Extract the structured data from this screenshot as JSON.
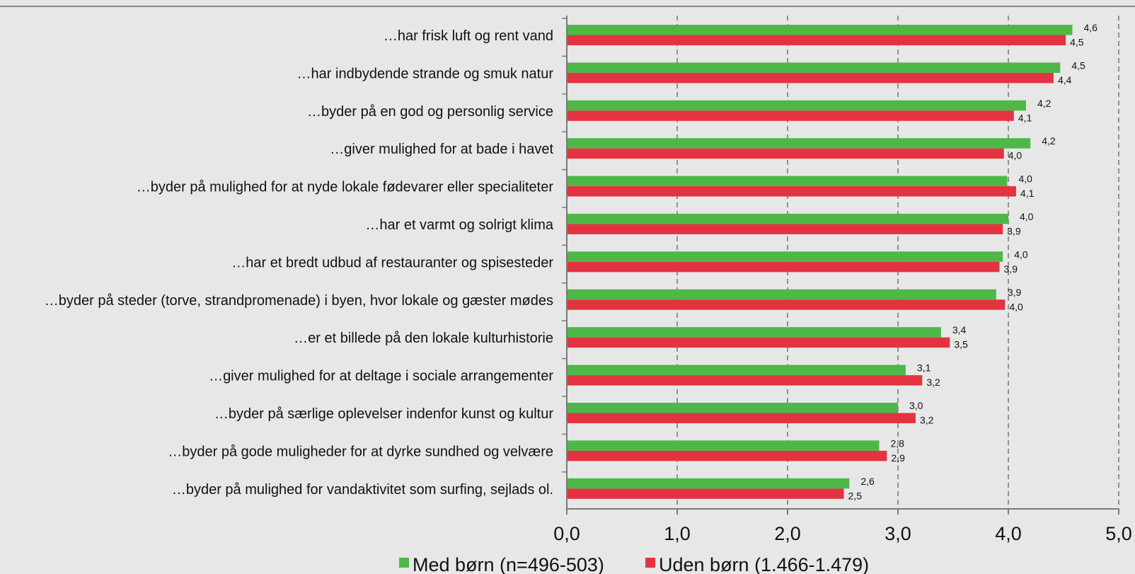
{
  "chart_data": {
    "type": "bar",
    "orientation": "horizontal",
    "categories": [
      "…har frisk luft og rent vand",
      "…har indbydende strande og smuk natur",
      "…byder på en god og personlig service",
      "…giver mulighed for at bade i havet",
      "…byder på mulighed for at nyde lokale fødevarer eller specialiteter",
      "…har et varmt og solrigt klima",
      "…har et bredt udbud af restauranter og spisesteder",
      "…byder på steder (torve, strandpromenade) i byen, hvor lokale og gæster mødes",
      "…er et billede på den lokale kulturhistorie",
      "…giver mulighed for at deltage i sociale arrangementer",
      "…byder på særlige oplevelser indenfor kunst og kultur",
      "…byder på gode muligheder for at dyrke sundhed og velvære",
      "…byder på mulighed for vandaktivitet som surfing, sejlads ol."
    ],
    "series": [
      {
        "name": "Med børn (n=496-503)",
        "color": "#4db848",
        "values": [
          4.58,
          4.47,
          4.16,
          4.2,
          3.99,
          4.0,
          3.95,
          3.89,
          3.39,
          3.07,
          3.0,
          2.83,
          2.56
        ],
        "labels": [
          "4,6",
          "4,5",
          "4,2",
          "4,2",
          "4,0",
          "4,0",
          "4,0",
          "3,9",
          "3,4",
          "3,1",
          "3,0",
          "2,8",
          "2,6"
        ]
      },
      {
        "name": "Uden børn (1.466-1.479)",
        "color": "#e43340",
        "values": [
          4.52,
          4.41,
          4.05,
          3.96,
          4.07,
          3.95,
          3.92,
          3.97,
          3.47,
          3.22,
          3.16,
          2.9,
          2.51
        ],
        "labels": [
          "4,5",
          "4,4",
          "4,1",
          "4,0",
          "4,1",
          "3,9",
          "3,9",
          "4,0",
          "3,5",
          "3,2",
          "3,2",
          "2,9",
          "2,5"
        ]
      }
    ],
    "xlim": [
      0,
      5
    ],
    "ticks": [
      0,
      1,
      2,
      3,
      4,
      5
    ],
    "tick_labels": [
      "0,0",
      "1,0",
      "2,0",
      "3,0",
      "4,0",
      "5,0"
    ],
    "grid": "vertical dashed",
    "legend_position": "bottom"
  }
}
